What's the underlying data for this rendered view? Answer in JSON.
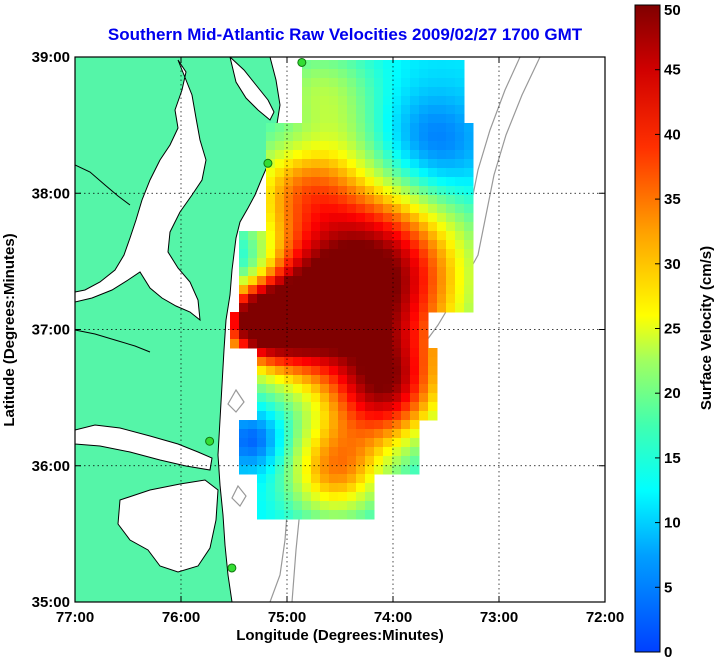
{
  "chart_data": {
    "type": "heatmap",
    "title": "Southern Mid-Atlantic Raw Velocities 2009/02/27 1700 GMT",
    "xlabel": "Longitude (Degrees:Minutes)",
    "ylabel": "Latitude (Degrees:Minutes)",
    "xlim": [
      -77,
      -72
    ],
    "ylim": [
      35,
      39
    ],
    "x_ticks": [
      {
        "value": -77,
        "label": "77:00"
      },
      {
        "value": -76,
        "label": "76:00"
      },
      {
        "value": -75,
        "label": "75:00"
      },
      {
        "value": -74,
        "label": "74:00"
      },
      {
        "value": -73,
        "label": "73:00"
      },
      {
        "value": -72,
        "label": "72:00"
      }
    ],
    "y_ticks": [
      {
        "value": 35,
        "label": "35:00"
      },
      {
        "value": 36,
        "label": "36:00"
      },
      {
        "value": 37,
        "label": "37:00"
      },
      {
        "value": 38,
        "label": "38:00"
      },
      {
        "value": 39,
        "label": "39:00"
      }
    ],
    "grid": true,
    "colorbar": {
      "label": "Surface Velocity (cm/s)",
      "min": 0,
      "max": 50,
      "ticks": [
        {
          "value": 0,
          "label": "0"
        },
        {
          "value": 5,
          "label": "5"
        },
        {
          "value": 10,
          "label": "10"
        },
        {
          "value": 15,
          "label": "15"
        },
        {
          "value": 20,
          "label": "20"
        },
        {
          "value": 25,
          "label": "25"
        },
        {
          "value": 30,
          "label": "30"
        },
        {
          "value": 35,
          "label": "35"
        },
        {
          "value": 40,
          "label": "40"
        },
        {
          "value": 45,
          "label": "45"
        },
        {
          "value": 50,
          "label": "50"
        }
      ],
      "colormap": "jet",
      "placement": "right"
    },
    "stations": [
      {
        "lon": -74.86,
        "lat": 38.96
      },
      {
        "lon": -75.18,
        "lat": 38.22
      },
      {
        "lon": -75.73,
        "lat": 36.18
      },
      {
        "lon": -75.52,
        "lat": 35.25
      }
    ],
    "colors": {
      "land": "#55f5a8",
      "title": "#0000ee",
      "station": "#33dd33",
      "bathymetry": "#999999"
    }
  }
}
